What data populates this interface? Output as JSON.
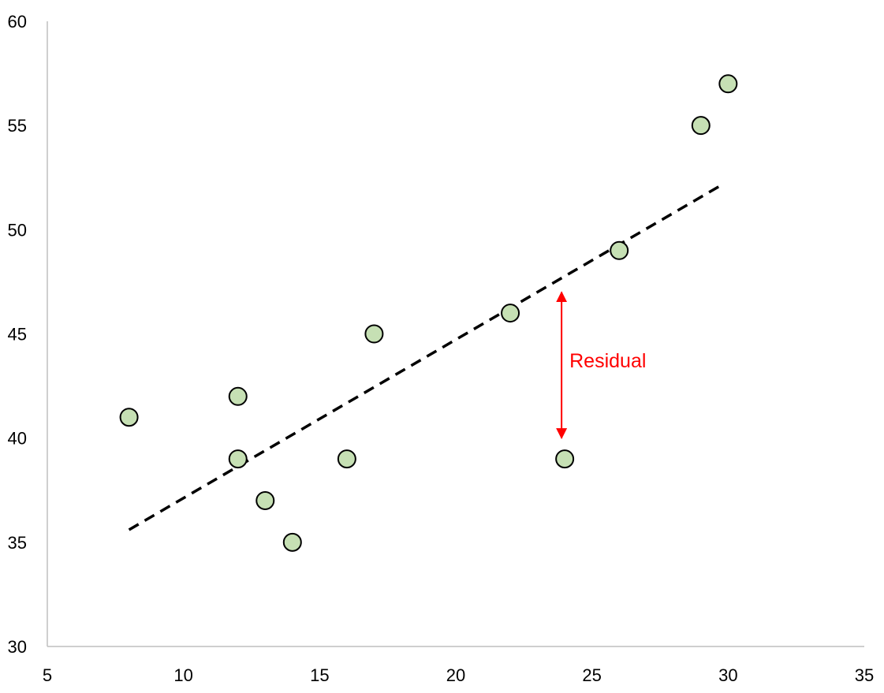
{
  "chart_data": {
    "type": "scatter",
    "title": "",
    "xlabel": "",
    "ylabel": "",
    "xlim": [
      5,
      35
    ],
    "ylim": [
      30,
      60
    ],
    "x_ticks": [
      5,
      10,
      15,
      20,
      25,
      30,
      35
    ],
    "y_ticks": [
      30,
      35,
      40,
      45,
      50,
      55,
      60
    ],
    "grid": false,
    "legend": "none",
    "points": [
      {
        "x": 8,
        "y": 41
      },
      {
        "x": 12,
        "y": 42
      },
      {
        "x": 12,
        "y": 39
      },
      {
        "x": 13,
        "y": 37
      },
      {
        "x": 14,
        "y": 35
      },
      {
        "x": 16,
        "y": 39
      },
      {
        "x": 17,
        "y": 45
      },
      {
        "x": 22,
        "y": 46
      },
      {
        "x": 24,
        "y": 39
      },
      {
        "x": 26,
        "y": 49
      },
      {
        "x": 29,
        "y": 55
      },
      {
        "x": 30,
        "y": 57
      }
    ],
    "trendline": {
      "x1": 8,
      "y1": 35.6,
      "x2": 29.7,
      "y2": 52.1,
      "style": "dashed",
      "color": "#000000"
    },
    "annotations": [
      {
        "text": "Residual",
        "x": 24,
        "y_from": 47,
        "y_to": 40,
        "color": "#ff0000"
      }
    ],
    "marker_fill": "#c6e0b4",
    "marker_stroke": "#000000"
  }
}
